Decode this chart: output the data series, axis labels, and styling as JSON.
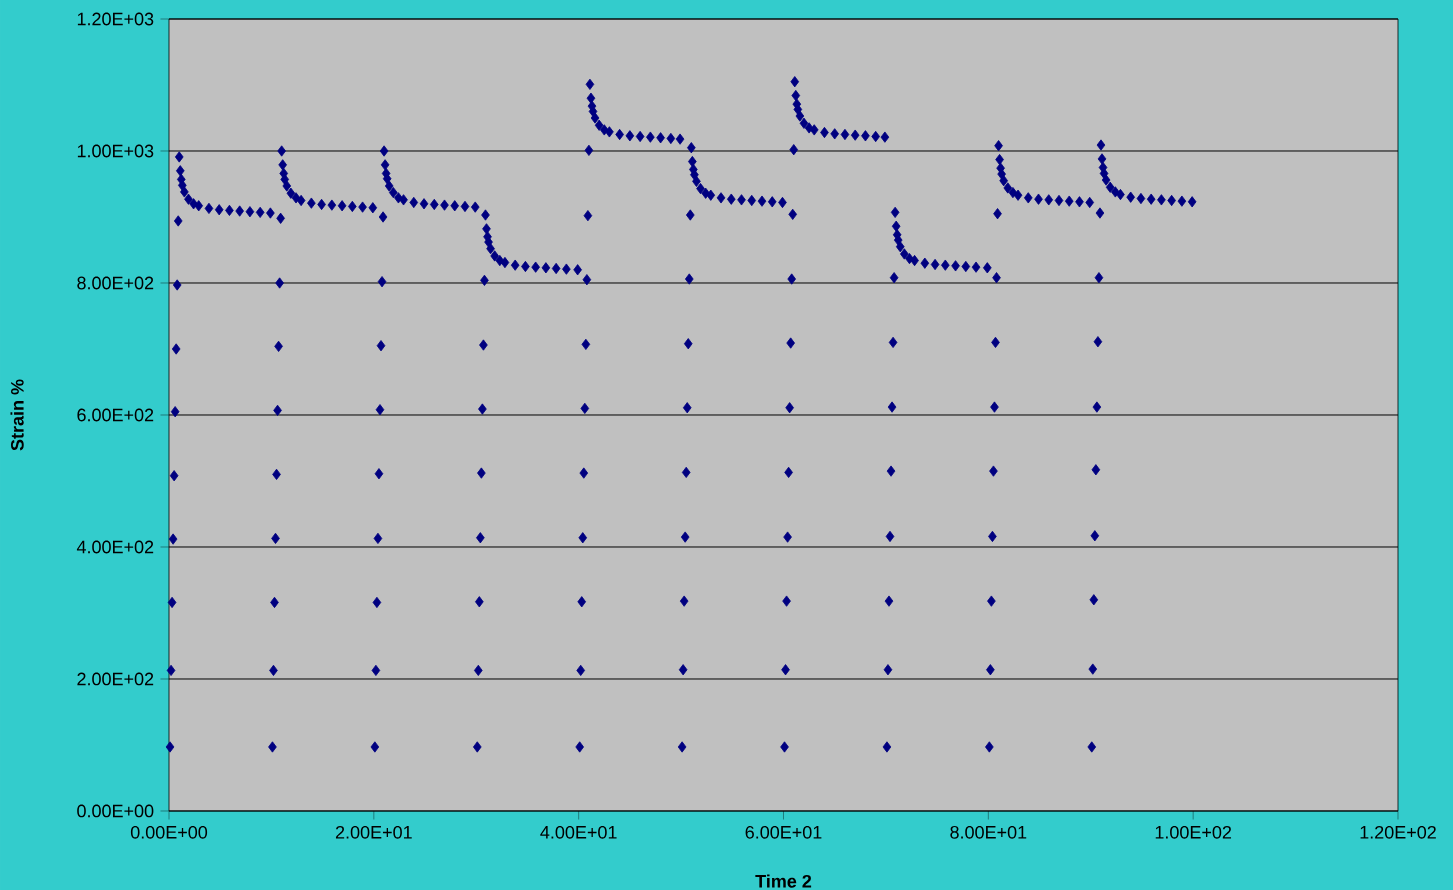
{
  "chart_data": {
    "type": "scatter",
    "xlabel": "Time 2",
    "ylabel": "Strain %",
    "xlim": [
      0,
      120
    ],
    "ylim": [
      0,
      1200
    ],
    "xticks": [
      {
        "value": 0,
        "label": "0.00E+00"
      },
      {
        "value": 20,
        "label": "2.00E+01"
      },
      {
        "value": 40,
        "label": "4.00E+01"
      },
      {
        "value": 60,
        "label": "6.00E+01"
      },
      {
        "value": 80,
        "label": "8.00E+01"
      },
      {
        "value": 100,
        "label": "1.00E+02"
      },
      {
        "value": 120,
        "label": "1.20E+02"
      }
    ],
    "yticks": [
      {
        "value": 0,
        "label": "0.00E+00"
      },
      {
        "value": 200,
        "label": "2.00E+02"
      },
      {
        "value": 400,
        "label": "4.00E+02"
      },
      {
        "value": 600,
        "label": "6.00E+02"
      },
      {
        "value": 800,
        "label": "8.00E+02"
      },
      {
        "value": 1000,
        "label": "1.00E+03"
      },
      {
        "value": 1200,
        "label": "1.20E+03"
      }
    ],
    "grid": "y",
    "marker": "diamond",
    "series": [
      {
        "color": "#000080",
        "x": [
          0.1,
          0.2,
          0.3,
          0.4,
          0.5,
          0.6,
          0.7,
          0.8,
          0.9,
          1.0,
          1.1,
          1.2,
          1.3,
          1.5,
          1.9,
          2.4,
          2.9,
          3.9,
          4.9,
          5.9,
          6.9,
          7.9,
          8.9,
          9.9
        ],
        "values": [
          97,
          213,
          316,
          412,
          508,
          605,
          700,
          797,
          894,
          991,
          970,
          957,
          948,
          938,
          927,
          920,
          917,
          913,
          911,
          910,
          909,
          908,
          907,
          906
        ]
      },
      {
        "color": "#000080",
        "x": [
          10.1,
          10.2,
          10.3,
          10.4,
          10.5,
          10.6,
          10.7,
          10.8,
          10.9,
          11.0,
          11.1,
          11.2,
          11.3,
          11.5,
          11.9,
          12.4,
          12.9,
          13.9,
          14.9,
          15.9,
          16.9,
          17.9,
          18.9,
          19.9
        ],
        "values": [
          97,
          213,
          316,
          413,
          510,
          607,
          704,
          800,
          898,
          1000,
          979,
          966,
          957,
          947,
          936,
          929,
          925,
          921,
          919,
          918,
          917,
          916,
          915,
          914
        ]
      },
      {
        "color": "#000080",
        "x": [
          20.1,
          20.2,
          20.3,
          20.4,
          20.5,
          20.6,
          20.7,
          20.8,
          20.9,
          21.0,
          21.1,
          21.2,
          21.3,
          21.5,
          21.9,
          22.4,
          22.9,
          23.9,
          24.9,
          25.9,
          26.9,
          27.9,
          28.9,
          29.9
        ],
        "values": [
          97,
          213,
          316,
          413,
          511,
          608,
          705,
          802,
          900,
          1000,
          979,
          966,
          958,
          947,
          937,
          929,
          926,
          922,
          920,
          919,
          918,
          917,
          916,
          915
        ]
      },
      {
        "color": "#000080",
        "x": [
          30.1,
          30.2,
          30.3,
          30.4,
          30.5,
          30.6,
          30.7,
          30.8,
          30.9,
          31.0,
          31.1,
          31.2,
          31.4,
          31.8,
          32.3,
          32.8,
          33.8,
          34.8,
          35.8,
          36.8,
          37.8,
          38.8,
          39.9
        ],
        "values": [
          97,
          213,
          317,
          414,
          512,
          609,
          706,
          804,
          903,
          882,
          870,
          862,
          852,
          841,
          834,
          831,
          827,
          825,
          824,
          823,
          822,
          821,
          820
        ]
      },
      {
        "color": "#000080",
        "x": [
          40.1,
          40.2,
          40.3,
          40.4,
          40.5,
          40.6,
          40.7,
          40.8,
          40.9,
          41.0,
          41.1,
          41.2,
          41.3,
          41.4,
          41.6,
          42.0,
          42.5,
          43.0,
          44.0,
          45.0,
          46.0,
          47.0,
          48.0,
          49.0,
          49.9
        ],
        "values": [
          97,
          213,
          317,
          414,
          512,
          610,
          707,
          805,
          902,
          1001,
          1101,
          1080,
          1068,
          1060,
          1050,
          1039,
          1032,
          1029,
          1025,
          1023,
          1022,
          1021,
          1020,
          1019,
          1018
        ]
      },
      {
        "color": "#000080",
        "x": [
          50.1,
          50.2,
          50.3,
          50.4,
          50.5,
          50.6,
          50.7,
          50.8,
          50.9,
          51.0,
          51.1,
          51.2,
          51.3,
          51.5,
          51.9,
          52.4,
          52.9,
          53.9,
          54.9,
          55.9,
          56.9,
          57.9,
          58.9,
          59.9
        ],
        "values": [
          97,
          214,
          318,
          415,
          513,
          611,
          708,
          806,
          903,
          1005,
          984,
          972,
          964,
          954,
          943,
          936,
          933,
          929,
          927,
          926,
          925,
          924,
          923,
          922
        ]
      },
      {
        "color": "#000080",
        "x": [
          60.1,
          60.2,
          60.3,
          60.4,
          60.5,
          60.6,
          60.7,
          60.8,
          60.9,
          61.0,
          61.1,
          61.2,
          61.3,
          61.4,
          61.6,
          62.0,
          62.5,
          63.0,
          64.0,
          65.0,
          66.0,
          67.0,
          68.0,
          69.0,
          69.9
        ],
        "values": [
          97,
          214,
          318,
          415,
          513,
          611,
          709,
          806,
          904,
          1002,
          1105,
          1084,
          1071,
          1063,
          1053,
          1042,
          1035,
          1032,
          1028,
          1026,
          1025,
          1024,
          1023,
          1022,
          1021
        ]
      },
      {
        "color": "#000080",
        "x": [
          70.1,
          70.2,
          70.3,
          70.4,
          70.5,
          70.6,
          70.7,
          70.8,
          70.9,
          71.0,
          71.1,
          71.2,
          71.4,
          71.8,
          72.3,
          72.8,
          73.8,
          74.8,
          75.8,
          76.8,
          77.8,
          78.8,
          79.9
        ],
        "values": [
          97,
          214,
          318,
          416,
          515,
          612,
          710,
          808,
          907,
          886,
          873,
          865,
          855,
          844,
          837,
          834,
          830,
          828,
          827,
          826,
          825,
          824,
          823
        ]
      },
      {
        "color": "#000080",
        "x": [
          80.1,
          80.2,
          80.3,
          80.4,
          80.5,
          80.6,
          80.7,
          80.8,
          80.9,
          81.0,
          81.1,
          81.2,
          81.3,
          81.5,
          81.9,
          82.4,
          82.9,
          83.9,
          84.9,
          85.9,
          86.9,
          87.9,
          88.9,
          89.9
        ],
        "values": [
          97,
          214,
          318,
          416,
          515,
          612,
          710,
          808,
          905,
          1008,
          987,
          974,
          965,
          955,
          944,
          937,
          933,
          929,
          927,
          926,
          925,
          924,
          923,
          922
        ]
      },
      {
        "color": "#000080",
        "x": [
          90.1,
          90.2,
          90.3,
          90.4,
          90.5,
          90.6,
          90.7,
          90.8,
          90.9,
          91.0,
          91.1,
          91.2,
          91.3,
          91.5,
          91.9,
          92.4,
          92.9,
          93.9,
          94.9,
          95.9,
          96.9,
          97.9,
          98.9,
          99.9
        ],
        "values": [
          97,
          215,
          320,
          417,
          517,
          612,
          711,
          808,
          906,
          1009,
          988,
          975,
          966,
          956,
          945,
          938,
          934,
          930,
          928,
          927,
          926,
          925,
          924,
          923
        ]
      }
    ]
  }
}
